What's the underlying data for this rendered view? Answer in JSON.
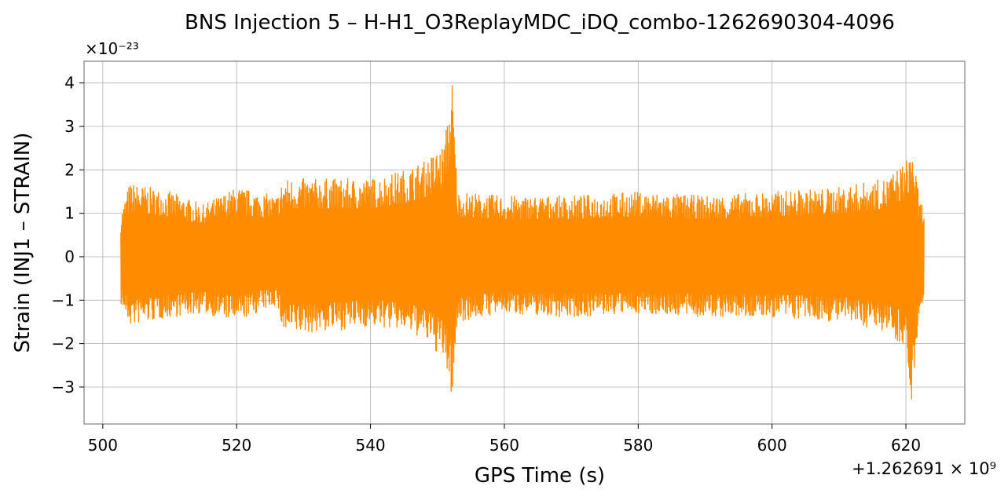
{
  "chart_data": {
    "type": "line",
    "title": "BNS Injection 5 – H-H1_O3ReplayMDC_iDQ_combo-1262690304-4096",
    "xlabel": "GPS Time (s)",
    "ylabel": "Strain (INJ1 – STRAIN)",
    "y_scale_note": "×10⁻²³",
    "x_offset_note": "+1.262691 × 10⁹",
    "xlim": [
      497.2,
      628.8
    ],
    "ylim": [
      -3.85,
      4.5
    ],
    "xticks": [
      500,
      520,
      540,
      560,
      580,
      600,
      620
    ],
    "yticks": [
      -3,
      -2,
      -1,
      0,
      1,
      2,
      3,
      4
    ],
    "ytick_labels": [
      "−3",
      "−2",
      "−1",
      "0",
      "1",
      "2",
      "3",
      "4"
    ],
    "grid": true,
    "series": [
      {
        "color": "#ff8c00",
        "x_range": [
          502.7,
          622.7
        ],
        "envelope": [
          {
            "x": 502.7,
            "lo": -1.1,
            "hi": 1.0
          },
          {
            "x": 504.0,
            "lo": -1.6,
            "hi": 1.7
          },
          {
            "x": 510.0,
            "lo": -1.4,
            "hi": 1.5
          },
          {
            "x": 515.0,
            "lo": -1.3,
            "hi": 1.2
          },
          {
            "x": 520.0,
            "lo": -1.5,
            "hi": 1.6
          },
          {
            "x": 526.0,
            "lo": -1.1,
            "hi": 1.4
          },
          {
            "x": 527.0,
            "lo": -1.8,
            "hi": 1.8
          },
          {
            "x": 535.0,
            "lo": -1.7,
            "hi": 1.8
          },
          {
            "x": 540.0,
            "lo": -1.6,
            "hi": 1.8
          },
          {
            "x": 545.0,
            "lo": -1.7,
            "hi": 2.0
          },
          {
            "x": 548.0,
            "lo": -1.9,
            "hi": 2.2
          },
          {
            "x": 551.0,
            "lo": -2.4,
            "hi": 2.6
          },
          {
            "x": 552.2,
            "lo": -3.3,
            "hi": 4.1
          },
          {
            "x": 553.0,
            "lo": -1.5,
            "hi": 1.5
          },
          {
            "x": 560.0,
            "lo": -1.3,
            "hi": 1.4
          },
          {
            "x": 570.0,
            "lo": -1.4,
            "hi": 1.4
          },
          {
            "x": 580.0,
            "lo": -1.3,
            "hi": 1.5
          },
          {
            "x": 590.0,
            "lo": -1.4,
            "hi": 1.4
          },
          {
            "x": 600.0,
            "lo": -1.4,
            "hi": 1.5
          },
          {
            "x": 610.0,
            "lo": -1.5,
            "hi": 1.6
          },
          {
            "x": 617.0,
            "lo": -1.7,
            "hi": 1.8
          },
          {
            "x": 620.0,
            "lo": -2.1,
            "hi": 2.2
          },
          {
            "x": 621.0,
            "lo": -3.5,
            "hi": 2.6
          },
          {
            "x": 622.0,
            "lo": -1.4,
            "hi": 1.3
          },
          {
            "x": 622.7,
            "lo": -0.9,
            "hi": 1.2
          }
        ]
      }
    ]
  }
}
